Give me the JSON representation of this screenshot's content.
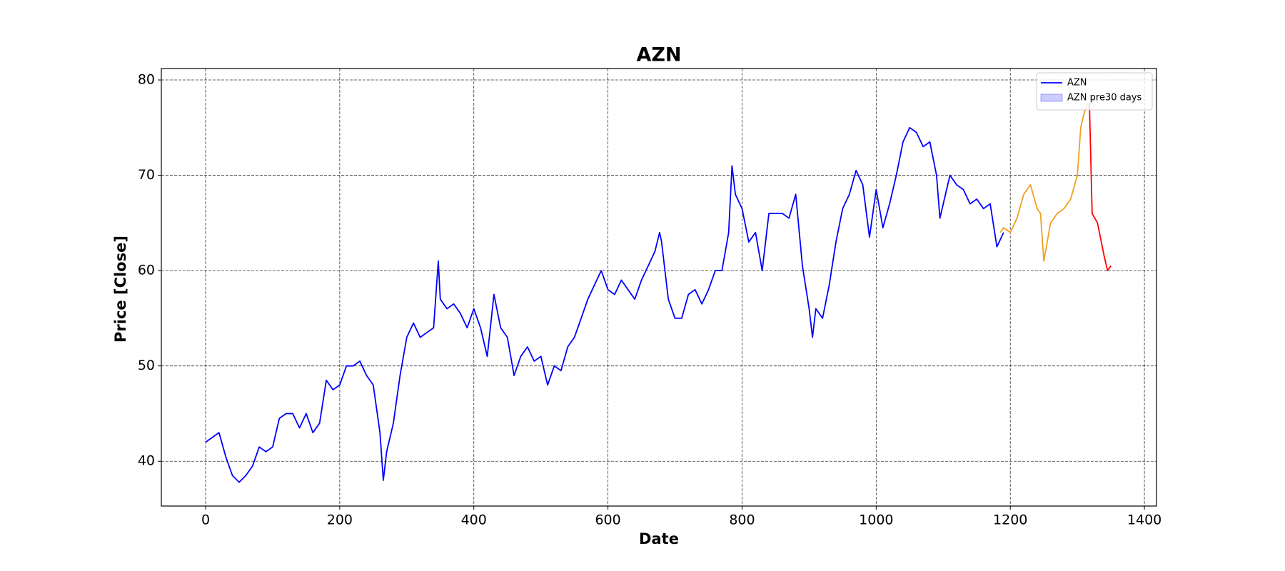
{
  "chart_data": {
    "type": "line",
    "title": "AZN",
    "x_label": "Date",
    "y_label": "Price [Close]",
    "xlim": [
      -66,
      1418
    ],
    "ylim": [
      35.3,
      81.2
    ],
    "xticks": [
      0,
      200,
      400,
      600,
      800,
      1000,
      1200,
      1400
    ],
    "yticks": [
      40,
      50,
      60,
      70,
      80
    ],
    "grid": true,
    "series": [
      {
        "name": "AZN",
        "color": "#0000ff",
        "x": [
          0,
          10,
          20,
          30,
          40,
          50,
          60,
          70,
          80,
          90,
          100,
          110,
          120,
          130,
          140,
          150,
          160,
          170,
          180,
          190,
          200,
          210,
          220,
          230,
          240,
          250,
          260,
          265,
          270,
          280,
          290,
          300,
          310,
          320,
          330,
          340,
          347,
          350,
          360,
          370,
          380,
          390,
          400,
          410,
          420,
          430,
          440,
          450,
          460,
          470,
          480,
          490,
          500,
          510,
          520,
          530,
          540,
          550,
          560,
          570,
          580,
          590,
          600,
          610,
          620,
          630,
          640,
          650,
          660,
          670,
          677,
          680,
          690,
          700,
          710,
          720,
          730,
          740,
          750,
          760,
          770,
          780,
          785,
          790,
          800,
          810,
          820,
          830,
          840,
          850,
          860,
          870,
          880,
          890,
          900,
          905,
          910,
          920,
          930,
          940,
          950,
          960,
          970,
          980,
          990,
          1000,
          1010,
          1020,
          1030,
          1040,
          1050,
          1060,
          1070,
          1080,
          1090,
          1095,
          1100,
          1110,
          1120,
          1130,
          1140,
          1150,
          1160,
          1170,
          1180,
          1190
        ],
        "values": [
          42,
          42.5,
          43,
          40.5,
          38.5,
          37.8,
          38.5,
          39.5,
          41.5,
          41,
          41.5,
          44.5,
          45,
          45,
          43.5,
          45,
          43,
          44,
          48.5,
          47.5,
          48,
          50,
          50,
          50.5,
          49,
          48,
          43,
          38,
          41,
          44,
          49,
          53,
          54.5,
          53,
          53.5,
          54,
          61,
          57,
          56,
          56.5,
          55.5,
          54,
          56,
          54,
          51,
          57.5,
          54,
          53,
          49,
          51,
          52,
          50.5,
          51,
          48,
          50,
          49.5,
          52,
          53,
          55,
          57,
          58.5,
          60,
          58,
          57.5,
          59,
          58,
          57,
          59,
          60.5,
          62,
          64,
          63,
          57,
          55,
          55,
          57.5,
          58,
          56.5,
          58,
          60,
          60,
          64,
          71,
          68,
          66.5,
          63,
          64,
          60,
          66,
          66,
          66,
          65.5,
          68,
          60.5,
          56,
          53,
          56,
          55,
          58.5,
          63,
          66.5,
          68,
          70.5,
          69,
          63.5,
          68.5,
          64.5,
          67,
          70,
          73.5,
          75,
          74.5,
          73,
          73.5,
          70,
          65.5,
          67,
          70,
          69,
          68.5,
          67,
          67.5,
          66.5,
          67,
          62.5,
          64
        ]
      },
      {
        "color": "#f0a020",
        "x": [
          1185,
          1190,
          1200,
          1210,
          1220,
          1230,
          1240,
          1245,
          1250,
          1260,
          1270,
          1280,
          1290,
          1300,
          1305,
          1310,
          1315,
          1320
        ],
        "values": [
          64,
          64.5,
          64,
          65.5,
          68,
          69,
          66.5,
          66,
          61,
          65,
          66,
          66.5,
          67.5,
          70,
          75,
          76.5,
          77.5,
          77.5
        ]
      },
      {
        "color": "#ff0000",
        "x": [
          1318,
          1322,
          1330,
          1340,
          1345,
          1350
        ],
        "values": [
          77.5,
          66,
          65,
          61.5,
          60,
          60.5
        ]
      }
    ],
    "legend": {
      "loc": "upper right",
      "entries": [
        {
          "label": "AZN",
          "color": "#0000ff",
          "kind": "line"
        },
        {
          "label": "AZN pre30 days",
          "color": "#0000ff",
          "kind": "patch"
        }
      ]
    }
  }
}
